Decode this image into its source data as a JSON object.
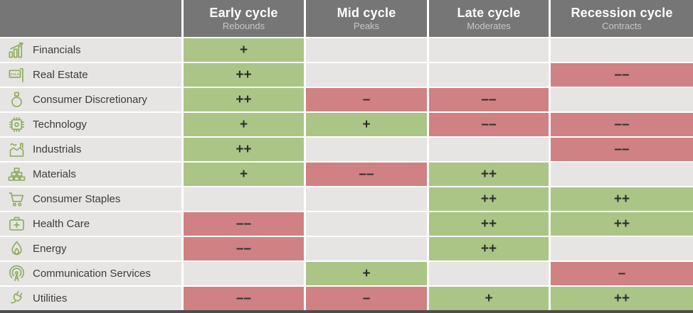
{
  "colors": {
    "header_bg": "#767676",
    "header_text": "#ffffff",
    "header_subtext": "#c7c7c7",
    "row_bg": "#e6e5e3",
    "positive_bg": "#aac586",
    "negative_bg": "#d08183",
    "symbol_text": "#2d2d2d",
    "sector_text": "#3c3c3c",
    "icon_green": "#8fad5e",
    "bottom_bar": "#4d4d4d",
    "gap": "#ffffff"
  },
  "chart_data": {
    "type": "heatmap",
    "columns": [
      {
        "label": "Early cycle",
        "sublabel": "Rebounds"
      },
      {
        "label": "Mid cycle",
        "sublabel": "Peaks"
      },
      {
        "label": "Late cycle",
        "sublabel": "Moderates"
      },
      {
        "label": "Recession cycle",
        "sublabel": "Contracts"
      }
    ],
    "rows": [
      {
        "sector": "Financials",
        "icon": "growth-chart-icon",
        "values": [
          "+",
          "",
          "",
          ""
        ]
      },
      {
        "sector": "Real Estate",
        "icon": "sale-sign-icon",
        "values": [
          "++",
          "",
          "",
          "––"
        ]
      },
      {
        "sector": "Consumer Discretionary",
        "icon": "ring-icon",
        "values": [
          "++",
          "–",
          "––",
          ""
        ]
      },
      {
        "sector": "Technology",
        "icon": "chip-icon",
        "values": [
          "+",
          "+",
          "––",
          "––"
        ]
      },
      {
        "sector": "Industrials",
        "icon": "factory-icon",
        "values": [
          "++",
          "",
          "",
          "––"
        ]
      },
      {
        "sector": "Materials",
        "icon": "bricks-icon",
        "values": [
          "+",
          "––",
          "++",
          ""
        ]
      },
      {
        "sector": "Consumer Staples",
        "icon": "cart-icon",
        "values": [
          "",
          "",
          "++",
          "++"
        ]
      },
      {
        "sector": "Health Care",
        "icon": "first-aid-icon",
        "values": [
          "––",
          "",
          "++",
          "++"
        ]
      },
      {
        "sector": "Energy",
        "icon": "droplet-icon",
        "values": [
          "––",
          "",
          "++",
          ""
        ]
      },
      {
        "sector": "Communication Services",
        "icon": "antenna-icon",
        "values": [
          "",
          "+",
          "",
          "–"
        ]
      },
      {
        "sector": "Utilities",
        "icon": "plug-icon",
        "values": [
          "––",
          "–",
          "+",
          "++"
        ]
      }
    ]
  }
}
